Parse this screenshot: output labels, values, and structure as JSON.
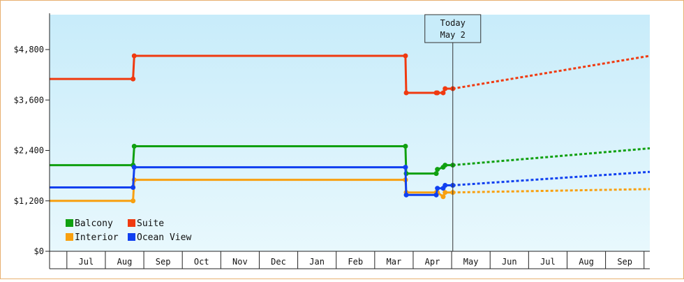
{
  "chart_data": {
    "type": "line",
    "step": true,
    "currency_ticks": [
      "$0",
      "$1,200",
      "$2,400",
      "$3,600",
      "$4,800"
    ],
    "ylim": [
      0,
      4800
    ],
    "y_ticks": [
      0,
      1200,
      2400,
      3600,
      4800
    ],
    "months": [
      "Jul",
      "Aug",
      "Sep",
      "Oct",
      "Nov",
      "Dec",
      "Jan",
      "Feb",
      "Mar",
      "Apr",
      "May",
      "Jun",
      "Jul",
      "Aug",
      "Sep"
    ],
    "x_range_months": [
      -0.45,
      15.15
    ],
    "today": {
      "line1": "Today",
      "line2": "May 2",
      "x": 10.03
    },
    "legend": {
      "placement": "bottom-left"
    },
    "series": [
      {
        "name": "Balcony",
        "color": "#10a010",
        "points": [
          [
            -0.45,
            2050
          ],
          [
            1.72,
            2050
          ],
          [
            1.75,
            2500
          ],
          [
            8.8,
            2500
          ],
          [
            8.82,
            1850
          ],
          [
            9.6,
            1850
          ],
          [
            9.63,
            1950
          ],
          [
            9.78,
            2000
          ],
          [
            9.83,
            2050
          ],
          [
            10.03,
            2050
          ]
        ],
        "forecast": [
          [
            10.03,
            2050
          ],
          [
            15.15,
            2450
          ]
        ]
      },
      {
        "name": "Suite",
        "color": "#f03a10",
        "points": [
          [
            -0.45,
            4100
          ],
          [
            1.72,
            4100
          ],
          [
            1.75,
            4650
          ],
          [
            8.8,
            4650
          ],
          [
            8.82,
            3770
          ],
          [
            9.6,
            3770
          ],
          [
            9.63,
            3770
          ],
          [
            9.78,
            3770
          ],
          [
            9.83,
            3870
          ],
          [
            10.03,
            3870
          ]
        ],
        "forecast": [
          [
            10.03,
            3870
          ],
          [
            15.15,
            4650
          ]
        ]
      },
      {
        "name": "Interior",
        "color": "#f8a010",
        "points": [
          [
            -0.45,
            1200
          ],
          [
            1.72,
            1200
          ],
          [
            1.75,
            1700
          ],
          [
            8.8,
            1700
          ],
          [
            8.82,
            1400
          ],
          [
            9.6,
            1400
          ],
          [
            9.63,
            1400
          ],
          [
            9.78,
            1300
          ],
          [
            9.83,
            1400
          ],
          [
            10.03,
            1400
          ]
        ],
        "forecast": [
          [
            10.03,
            1400
          ],
          [
            15.15,
            1480
          ]
        ]
      },
      {
        "name": "Ocean View",
        "color": "#1040f0",
        "points": [
          [
            -0.45,
            1520
          ],
          [
            1.72,
            1520
          ],
          [
            1.75,
            2000
          ],
          [
            8.8,
            2000
          ],
          [
            8.82,
            1340
          ],
          [
            9.6,
            1340
          ],
          [
            9.63,
            1500
          ],
          [
            9.78,
            1500
          ],
          [
            9.83,
            1570
          ],
          [
            10.03,
            1570
          ]
        ],
        "forecast": [
          [
            10.03,
            1570
          ],
          [
            15.15,
            1890
          ]
        ]
      }
    ]
  }
}
